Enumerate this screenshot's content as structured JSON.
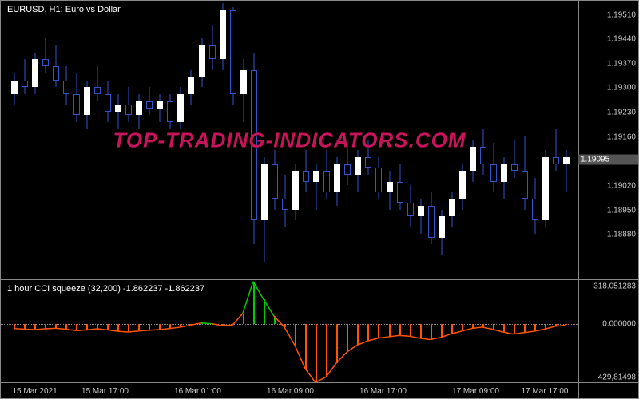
{
  "main": {
    "title": "EURUSD, H1:  Euro vs  Dollar",
    "ylim": [
      1.1875,
      1.1955
    ],
    "yticks": [
      1.1951,
      1.1944,
      1.1937,
      1.193,
      1.1923,
      1.1916,
      1.1909,
      1.1902,
      1.1895,
      1.1888
    ],
    "ytick_labels": [
      "1.19510",
      "1.19440",
      "1.19370",
      "1.19300",
      "1.19230",
      "1.19160",
      "1.19090",
      "1.19020",
      "1.18950",
      "1.18880"
    ],
    "current_price": 1.19095,
    "background_color": "#000000",
    "grid_color": "#888888",
    "up_color": "#ffffff",
    "up_border": "#ffffff",
    "down_fill": "#000000",
    "down_border": "#3355cc",
    "wick_color": "#3355cc",
    "candle_width": 8,
    "candles": [
      {
        "o": 1.1928,
        "h": 1.1934,
        "l": 1.1925,
        "c": 1.1932
      },
      {
        "o": 1.1932,
        "h": 1.1938,
        "l": 1.1928,
        "c": 1.193
      },
      {
        "o": 1.193,
        "h": 1.194,
        "l": 1.1928,
        "c": 1.1938
      },
      {
        "o": 1.1938,
        "h": 1.1944,
        "l": 1.1934,
        "c": 1.1936
      },
      {
        "o": 1.1936,
        "h": 1.1942,
        "l": 1.193,
        "c": 1.1932
      },
      {
        "o": 1.1932,
        "h": 1.1936,
        "l": 1.1925,
        "c": 1.1928
      },
      {
        "o": 1.1928,
        "h": 1.1934,
        "l": 1.192,
        "c": 1.1922
      },
      {
        "o": 1.1922,
        "h": 1.1932,
        "l": 1.1918,
        "c": 1.193
      },
      {
        "o": 1.193,
        "h": 1.1936,
        "l": 1.1926,
        "c": 1.1928
      },
      {
        "o": 1.1928,
        "h": 1.1932,
        "l": 1.192,
        "c": 1.1923
      },
      {
        "o": 1.1923,
        "h": 1.1928,
        "l": 1.1918,
        "c": 1.1925
      },
      {
        "o": 1.1925,
        "h": 1.193,
        "l": 1.192,
        "c": 1.1922
      },
      {
        "o": 1.1922,
        "h": 1.1928,
        "l": 1.1918,
        "c": 1.1926
      },
      {
        "o": 1.1926,
        "h": 1.193,
        "l": 1.1922,
        "c": 1.1924
      },
      {
        "o": 1.1924,
        "h": 1.1928,
        "l": 1.192,
        "c": 1.1926
      },
      {
        "o": 1.1926,
        "h": 1.1928,
        "l": 1.1918,
        "c": 1.192
      },
      {
        "o": 1.192,
        "h": 1.193,
        "l": 1.1918,
        "c": 1.1928
      },
      {
        "o": 1.1928,
        "h": 1.1935,
        "l": 1.1925,
        "c": 1.1933
      },
      {
        "o": 1.1933,
        "h": 1.1944,
        "l": 1.193,
        "c": 1.1942
      },
      {
        "o": 1.1942,
        "h": 1.1948,
        "l": 1.1935,
        "c": 1.1938
      },
      {
        "o": 1.1938,
        "h": 1.1954,
        "l": 1.1935,
        "c": 1.1952
      },
      {
        "o": 1.1952,
        "h": 1.1953,
        "l": 1.1925,
        "c": 1.1928
      },
      {
        "o": 1.1928,
        "h": 1.1938,
        "l": 1.192,
        "c": 1.1935
      },
      {
        "o": 1.1935,
        "h": 1.194,
        "l": 1.1885,
        "c": 1.1892
      },
      {
        "o": 1.1892,
        "h": 1.191,
        "l": 1.188,
        "c": 1.1908
      },
      {
        "o": 1.1908,
        "h": 1.1912,
        "l": 1.1895,
        "c": 1.1898
      },
      {
        "o": 1.1898,
        "h": 1.1905,
        "l": 1.189,
        "c": 1.1895
      },
      {
        "o": 1.1895,
        "h": 1.1908,
        "l": 1.1892,
        "c": 1.1906
      },
      {
        "o": 1.1906,
        "h": 1.1912,
        "l": 1.19,
        "c": 1.1903
      },
      {
        "o": 1.1903,
        "h": 1.1908,
        "l": 1.1895,
        "c": 1.1906
      },
      {
        "o": 1.1906,
        "h": 1.1912,
        "l": 1.1898,
        "c": 1.19
      },
      {
        "o": 1.19,
        "h": 1.191,
        "l": 1.1896,
        "c": 1.1908
      },
      {
        "o": 1.1908,
        "h": 1.1914,
        "l": 1.1902,
        "c": 1.1905
      },
      {
        "o": 1.1905,
        "h": 1.1912,
        "l": 1.19,
        "c": 1.191
      },
      {
        "o": 1.191,
        "h": 1.1915,
        "l": 1.1905,
        "c": 1.1907
      },
      {
        "o": 1.1907,
        "h": 1.191,
        "l": 1.1898,
        "c": 1.19
      },
      {
        "o": 1.19,
        "h": 1.1906,
        "l": 1.1895,
        "c": 1.1903
      },
      {
        "o": 1.1903,
        "h": 1.1908,
        "l": 1.1895,
        "c": 1.1897
      },
      {
        "o": 1.1897,
        "h": 1.1902,
        "l": 1.189,
        "c": 1.1893
      },
      {
        "o": 1.1893,
        "h": 1.1898,
        "l": 1.1888,
        "c": 1.1896
      },
      {
        "o": 1.1896,
        "h": 1.19,
        "l": 1.1885,
        "c": 1.1887
      },
      {
        "o": 1.1887,
        "h": 1.1895,
        "l": 1.1882,
        "c": 1.1893
      },
      {
        "o": 1.1893,
        "h": 1.19,
        "l": 1.189,
        "c": 1.1898
      },
      {
        "o": 1.1898,
        "h": 1.1908,
        "l": 1.1895,
        "c": 1.1906
      },
      {
        "o": 1.1906,
        "h": 1.1915,
        "l": 1.1903,
        "c": 1.1913
      },
      {
        "o": 1.1913,
        "h": 1.1918,
        "l": 1.1905,
        "c": 1.1908
      },
      {
        "o": 1.1908,
        "h": 1.1914,
        "l": 1.19,
        "c": 1.1903
      },
      {
        "o": 1.1903,
        "h": 1.191,
        "l": 1.1898,
        "c": 1.1908
      },
      {
        "o": 1.1908,
        "h": 1.1915,
        "l": 1.1904,
        "c": 1.1906
      },
      {
        "o": 1.1906,
        "h": 1.1916,
        "l": 1.1895,
        "c": 1.1898
      },
      {
        "o": 1.1898,
        "h": 1.1904,
        "l": 1.1888,
        "c": 1.1892
      },
      {
        "o": 1.1892,
        "h": 1.1912,
        "l": 1.189,
        "c": 1.191
      },
      {
        "o": 1.191,
        "h": 1.1918,
        "l": 1.1906,
        "c": 1.1908
      },
      {
        "o": 1.1908,
        "h": 1.1912,
        "l": 1.19,
        "c": 1.191
      }
    ]
  },
  "sub": {
    "title": "1 hour CCI squeeze (32,200) -1.862237 -1.862237",
    "ylim": [
      -430,
      320
    ],
    "yticks": [
      318.051283,
      0.0,
      -429.81498
    ],
    "ytick_labels": [
      "318.051283",
      "0.000000",
      "-429,81498"
    ],
    "zero": 0,
    "up_color": "#00cc00",
    "down_color": "#ff5500",
    "line_color_up": "#00cc00",
    "line_color_down": "#ff5500",
    "values": [
      -30,
      -35,
      -38,
      -32,
      -28,
      -35,
      -45,
      -40,
      -32,
      -40,
      -50,
      -55,
      -48,
      -42,
      -38,
      -30,
      -20,
      -5,
      10,
      5,
      -8,
      -5,
      80,
      310,
      180,
      60,
      -20,
      -150,
      -320,
      -420,
      -380,
      -280,
      -200,
      -150,
      -120,
      -100,
      -90,
      -80,
      -85,
      -100,
      -110,
      -95,
      -70,
      -50,
      -30,
      -20,
      -35,
      -55,
      -70,
      -60,
      -50,
      -35,
      -15,
      -5
    ]
  },
  "xaxis": {
    "ticks": [
      {
        "pos": 0.02,
        "label": "15 Mar 2021"
      },
      {
        "pos": 0.18,
        "label": "15 Mar 17:00"
      },
      {
        "pos": 0.34,
        "label": "16 Mar 01:00"
      },
      {
        "pos": 0.5,
        "label": "16 Mar 09:00"
      },
      {
        "pos": 0.66,
        "label": "16 Mar 17:00"
      },
      {
        "pos": 0.82,
        "label": "17 Mar 09:00"
      },
      {
        "pos": 0.98,
        "label": "17 Mar 17:00"
      }
    ]
  },
  "watermark": "TOP-TRADING-INDICATORS.COM"
}
